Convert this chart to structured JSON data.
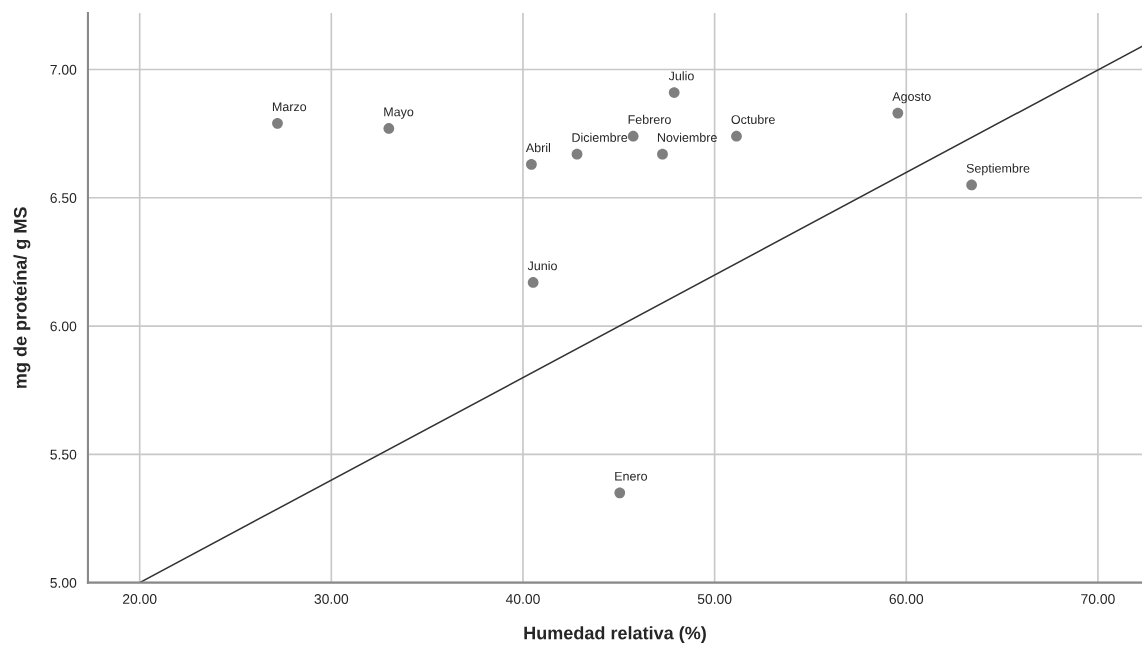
{
  "chart_data": {
    "type": "scatter",
    "xlabel": "Humedad relativa (%)",
    "ylabel": "mg de proteína/ g MS",
    "xlim": [
      17.3,
      72.3
    ],
    "ylim": [
      5.0,
      7.22
    ],
    "xticks": [
      {
        "value": 20,
        "label": "20.00"
      },
      {
        "value": 30,
        "label": "30.00"
      },
      {
        "value": 40,
        "label": "40.00"
      },
      {
        "value": 50,
        "label": "50.00"
      },
      {
        "value": 60,
        "label": "60.00"
      },
      {
        "value": 70,
        "label": "70.00"
      }
    ],
    "yticks": [
      {
        "value": 5,
        "label": "5.00"
      },
      {
        "value": 5.5,
        "label": "5.50"
      },
      {
        "value": 6,
        "label": "6.00"
      },
      {
        "value": 6.5,
        "label": "6.50"
      },
      {
        "value": 7,
        "label": "7.00"
      }
    ],
    "grid": true,
    "legend": false,
    "series": [
      {
        "marker": "circle",
        "color": "#7f7f7f",
        "x": [
          27.19,
          33.0,
          40.44,
          42.82,
          45.75,
          47.28,
          47.89,
          40.53,
          51.14,
          59.56,
          63.41,
          45.05
        ],
        "values": [
          6.79,
          6.77,
          6.63,
          6.67,
          6.74,
          6.67,
          6.91,
          6.17,
          6.74,
          6.83,
          6.55,
          5.35
        ]
      },
      {
        "type": "line",
        "color": "#333333",
        "x": [
          20.0,
          72.3
        ],
        "values": [
          5.0,
          7.09
        ]
      }
    ],
    "annotations": [
      {
        "text": "Marzo",
        "x": 27.19,
        "y": 6.79
      },
      {
        "text": "Mayo",
        "x": 33.0,
        "y": 6.77
      },
      {
        "text": "Abril",
        "x": 40.44,
        "y": 6.63
      },
      {
        "text": "Diciembre",
        "x": 42.82,
        "y": 6.67
      },
      {
        "text": "Febrero",
        "x": 45.75,
        "y": 6.74
      },
      {
        "text": "Noviembre",
        "x": 47.28,
        "y": 6.67
      },
      {
        "text": "Julio",
        "x": 47.89,
        "y": 6.91
      },
      {
        "text": "Junio",
        "x": 40.53,
        "y": 6.17
      },
      {
        "text": "Octubre",
        "x": 51.14,
        "y": 6.74
      },
      {
        "text": "Agosto",
        "x": 59.56,
        "y": 6.83
      },
      {
        "text": "Septiembre",
        "x": 63.41,
        "y": 6.55
      },
      {
        "text": "Enero",
        "x": 45.05,
        "y": 5.35
      }
    ]
  }
}
